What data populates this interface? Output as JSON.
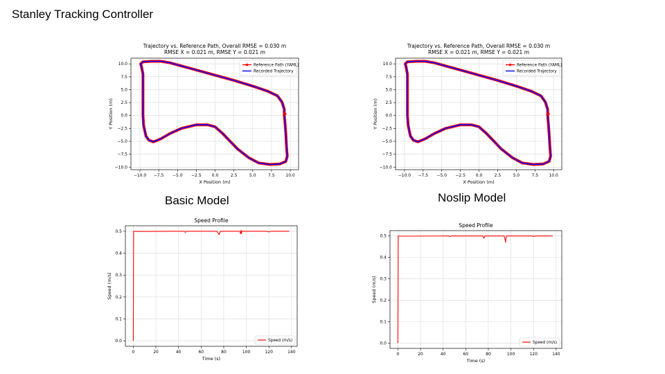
{
  "slide": {
    "title": "Stanley Tracking Controller",
    "captions": {
      "basic": "Basic Model",
      "noslip": "Noslip Model"
    }
  },
  "colors": {
    "reference": "#ff0000",
    "recorded": "#0000ff",
    "speed": "#ff0000"
  },
  "chart_data": [
    {
      "type": "line",
      "name": "basic-trajectory",
      "title": "Trajectory vs. Reference Path, Overall RMSE = 0.030 m",
      "subtitle": "RMSE X = 0.021 m, RMSE Y = 0.021 m",
      "xlabel": "X Position (m)",
      "ylabel": "Y Position (m)",
      "xlim": [
        -11.2,
        11.1
      ],
      "ylim": [
        -10.5,
        11.1
      ],
      "xticks": [
        -10.0,
        -7.5,
        -5.0,
        -2.5,
        0.0,
        2.5,
        5.0,
        7.5,
        10.0
      ],
      "yticks": [
        -10.0,
        -7.5,
        -5.0,
        -2.5,
        0.0,
        2.5,
        5.0,
        7.5,
        10.0
      ],
      "grid": true,
      "legend": "top-right",
      "legend_entries": [
        "Reference Path (YAML)",
        "Recorded Trajectory"
      ],
      "path_x": [
        -9.6,
        -9.8,
        -9.9,
        -9.6,
        -8.5,
        -7.2,
        -6.0,
        -4.5,
        -2.5,
        0.0,
        2.5,
        5.0,
        7.0,
        8.3,
        8.9,
        9.2,
        9.2,
        9.3,
        9.4,
        9.5,
        9.6,
        9.4,
        8.6,
        7.3,
        5.8,
        4.5,
        3.0,
        2.0,
        1.0,
        0.0,
        -1.0,
        -2.5,
        -4.5,
        -6.0,
        -7.2,
        -8.2,
        -8.8,
        -9.2,
        -9.5,
        -9.6,
        -9.6,
        -9.6
      ],
      "path_y": [
        8.0,
        9.5,
        10.0,
        10.4,
        10.5,
        10.5,
        10.2,
        9.6,
        8.8,
        7.8,
        6.8,
        5.7,
        4.7,
        3.8,
        2.6,
        1.2,
        0.0,
        -1.5,
        -3.5,
        -6.0,
        -7.9,
        -8.9,
        -9.4,
        -9.5,
        -9.2,
        -8.2,
        -6.5,
        -5.0,
        -3.5,
        -2.2,
        -1.8,
        -1.8,
        -2.5,
        -3.5,
        -4.5,
        -5.1,
        -4.8,
        -4.0,
        -2.0,
        0.0,
        3.0,
        6.0
      ]
    },
    {
      "type": "line",
      "name": "noslip-trajectory",
      "title": "Trajectory vs. Reference Path, Overall RMSE = 0.030 m",
      "subtitle": "RMSE X = 0.021 m, RMSE Y = 0.021 m",
      "xlabel": "X Position (m)",
      "ylabel": "Y Position (m)",
      "xlim": [
        -11.2,
        11.1
      ],
      "ylim": [
        -10.5,
        11.1
      ],
      "xticks": [
        -10.0,
        -7.5,
        -5.0,
        -2.5,
        0.0,
        2.5,
        5.0,
        7.5,
        10.0
      ],
      "yticks": [
        -10.0,
        -7.5,
        -5.0,
        -2.5,
        0.0,
        2.5,
        5.0,
        7.5,
        10.0
      ],
      "grid": true,
      "legend": "top-right",
      "legend_entries": [
        "Reference Path (YAML)",
        "Recorded Trajectory"
      ],
      "path_x": [
        -9.6,
        -9.8,
        -9.9,
        -9.6,
        -8.5,
        -7.2,
        -6.0,
        -4.5,
        -2.5,
        0.0,
        2.5,
        5.0,
        7.0,
        8.3,
        8.9,
        9.2,
        9.2,
        9.3,
        9.4,
        9.5,
        9.6,
        9.4,
        8.6,
        7.3,
        5.8,
        4.5,
        3.0,
        2.0,
        1.0,
        0.0,
        -1.0,
        -2.5,
        -4.5,
        -6.0,
        -7.2,
        -8.2,
        -8.8,
        -9.2,
        -9.5,
        -9.6,
        -9.6,
        -9.6
      ],
      "path_y": [
        8.0,
        9.5,
        10.0,
        10.4,
        10.5,
        10.5,
        10.2,
        9.6,
        8.8,
        7.8,
        6.8,
        5.7,
        4.7,
        3.8,
        2.6,
        1.2,
        0.0,
        -1.5,
        -3.5,
        -6.0,
        -7.9,
        -8.9,
        -9.4,
        -9.5,
        -9.2,
        -8.2,
        -6.5,
        -5.0,
        -3.5,
        -2.2,
        -1.8,
        -1.8,
        -2.5,
        -3.5,
        -4.5,
        -5.1,
        -4.8,
        -4.0,
        -2.0,
        0.0,
        3.0,
        6.0
      ]
    },
    {
      "type": "line",
      "name": "basic-speed",
      "title": "Speed Profile",
      "xlabel": "Time (s)",
      "ylabel": "Speed (m/s)",
      "xlim": [
        -7,
        145
      ],
      "ylim": [
        -0.025,
        0.525
      ],
      "xticks": [
        0,
        20,
        40,
        60,
        80,
        100,
        120,
        140
      ],
      "yticks": [
        0.0,
        0.1,
        0.2,
        0.3,
        0.4,
        0.5
      ],
      "grid": true,
      "legend": "bottom-right",
      "legend_entries": [
        "Speed (m/s)"
      ],
      "x": [
        0,
        0.3,
        1,
        3,
        45,
        46,
        47,
        74,
        76,
        77,
        78,
        94,
        95,
        95.3,
        95.6,
        96,
        97,
        118,
        120,
        122,
        138
      ],
      "y": [
        0.0,
        0.5,
        0.5,
        0.499,
        0.5,
        0.495,
        0.5,
        0.5,
        0.485,
        0.5,
        0.5,
        0.5,
        0.49,
        0.505,
        0.488,
        0.5,
        0.5,
        0.5,
        0.497,
        0.5,
        0.5
      ]
    },
    {
      "type": "line",
      "name": "noslip-speed",
      "title": "Speed Profile",
      "xlabel": "Time (s)",
      "ylabel": "Speed (m/s)",
      "xlim": [
        -7,
        145
      ],
      "ylim": [
        -0.025,
        0.525
      ],
      "xticks": [
        0,
        20,
        40,
        60,
        80,
        100,
        120,
        140
      ],
      "yticks": [
        0.0,
        0.1,
        0.2,
        0.3,
        0.4,
        0.5
      ],
      "grid": true,
      "legend": "bottom-right",
      "legend_entries": [
        "Speed (m/s)"
      ],
      "x": [
        0,
        0.3,
        1,
        3,
        45,
        46,
        47,
        75,
        76,
        77,
        78,
        94,
        95,
        95.3,
        95.6,
        96,
        97,
        118,
        120,
        122,
        137
      ],
      "y": [
        0.0,
        0.5,
        0.5,
        0.499,
        0.5,
        0.497,
        0.5,
        0.5,
        0.49,
        0.5,
        0.5,
        0.5,
        0.48,
        0.47,
        0.49,
        0.5,
        0.5,
        0.5,
        0.498,
        0.5,
        0.5
      ]
    }
  ]
}
